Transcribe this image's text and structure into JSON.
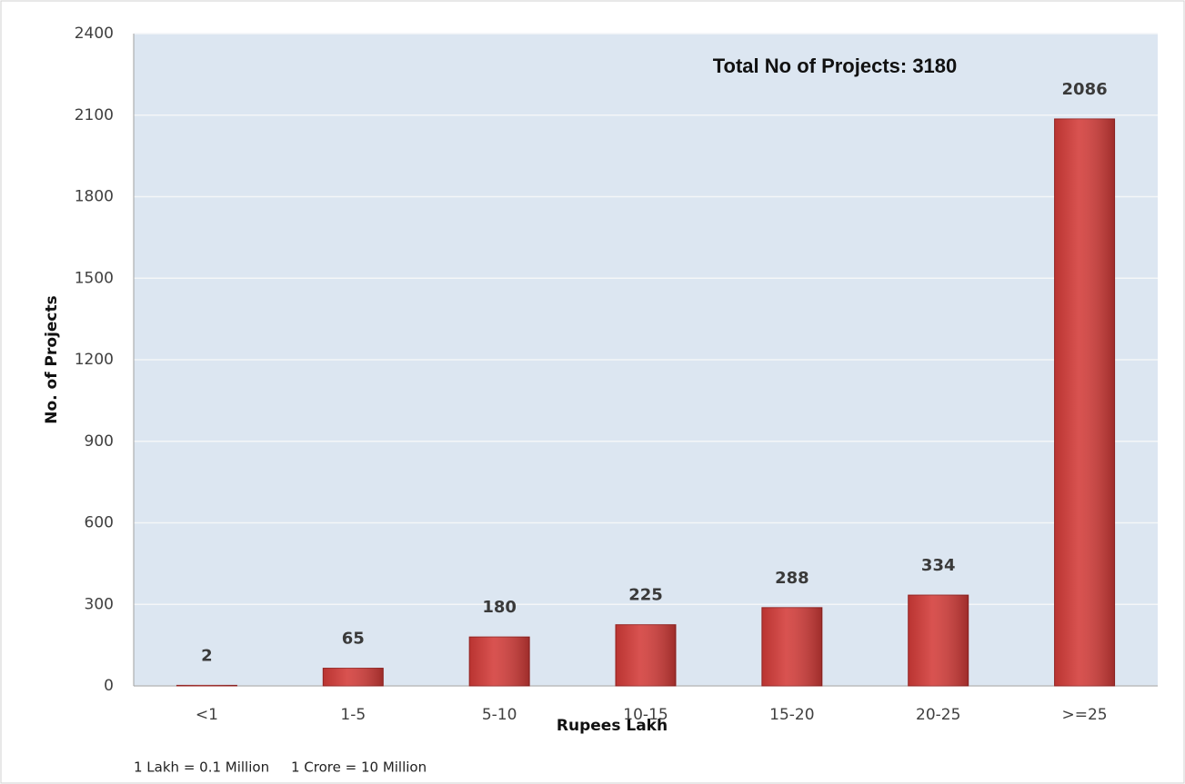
{
  "chart_data": {
    "type": "bar",
    "annotation": "Total No of Projects: 3180",
    "xlabel": "Rupees Lakh",
    "ylabel": "No. of Projects",
    "notes": [
      "1 Lakh = 0.1 Million",
      "1 Crore = 10 Million"
    ],
    "categories": [
      "<1",
      "1-5",
      "5-10",
      "10-15",
      "15-20",
      "20-25",
      ">=25"
    ],
    "values": [
      2,
      65,
      180,
      225,
      288,
      334,
      2086
    ],
    "color": "#d33b38",
    "ylim": [
      0,
      2400
    ],
    "yticks": [
      0,
      300,
      600,
      900,
      1200,
      1500,
      1800,
      2100,
      2400
    ],
    "grid": true
  }
}
